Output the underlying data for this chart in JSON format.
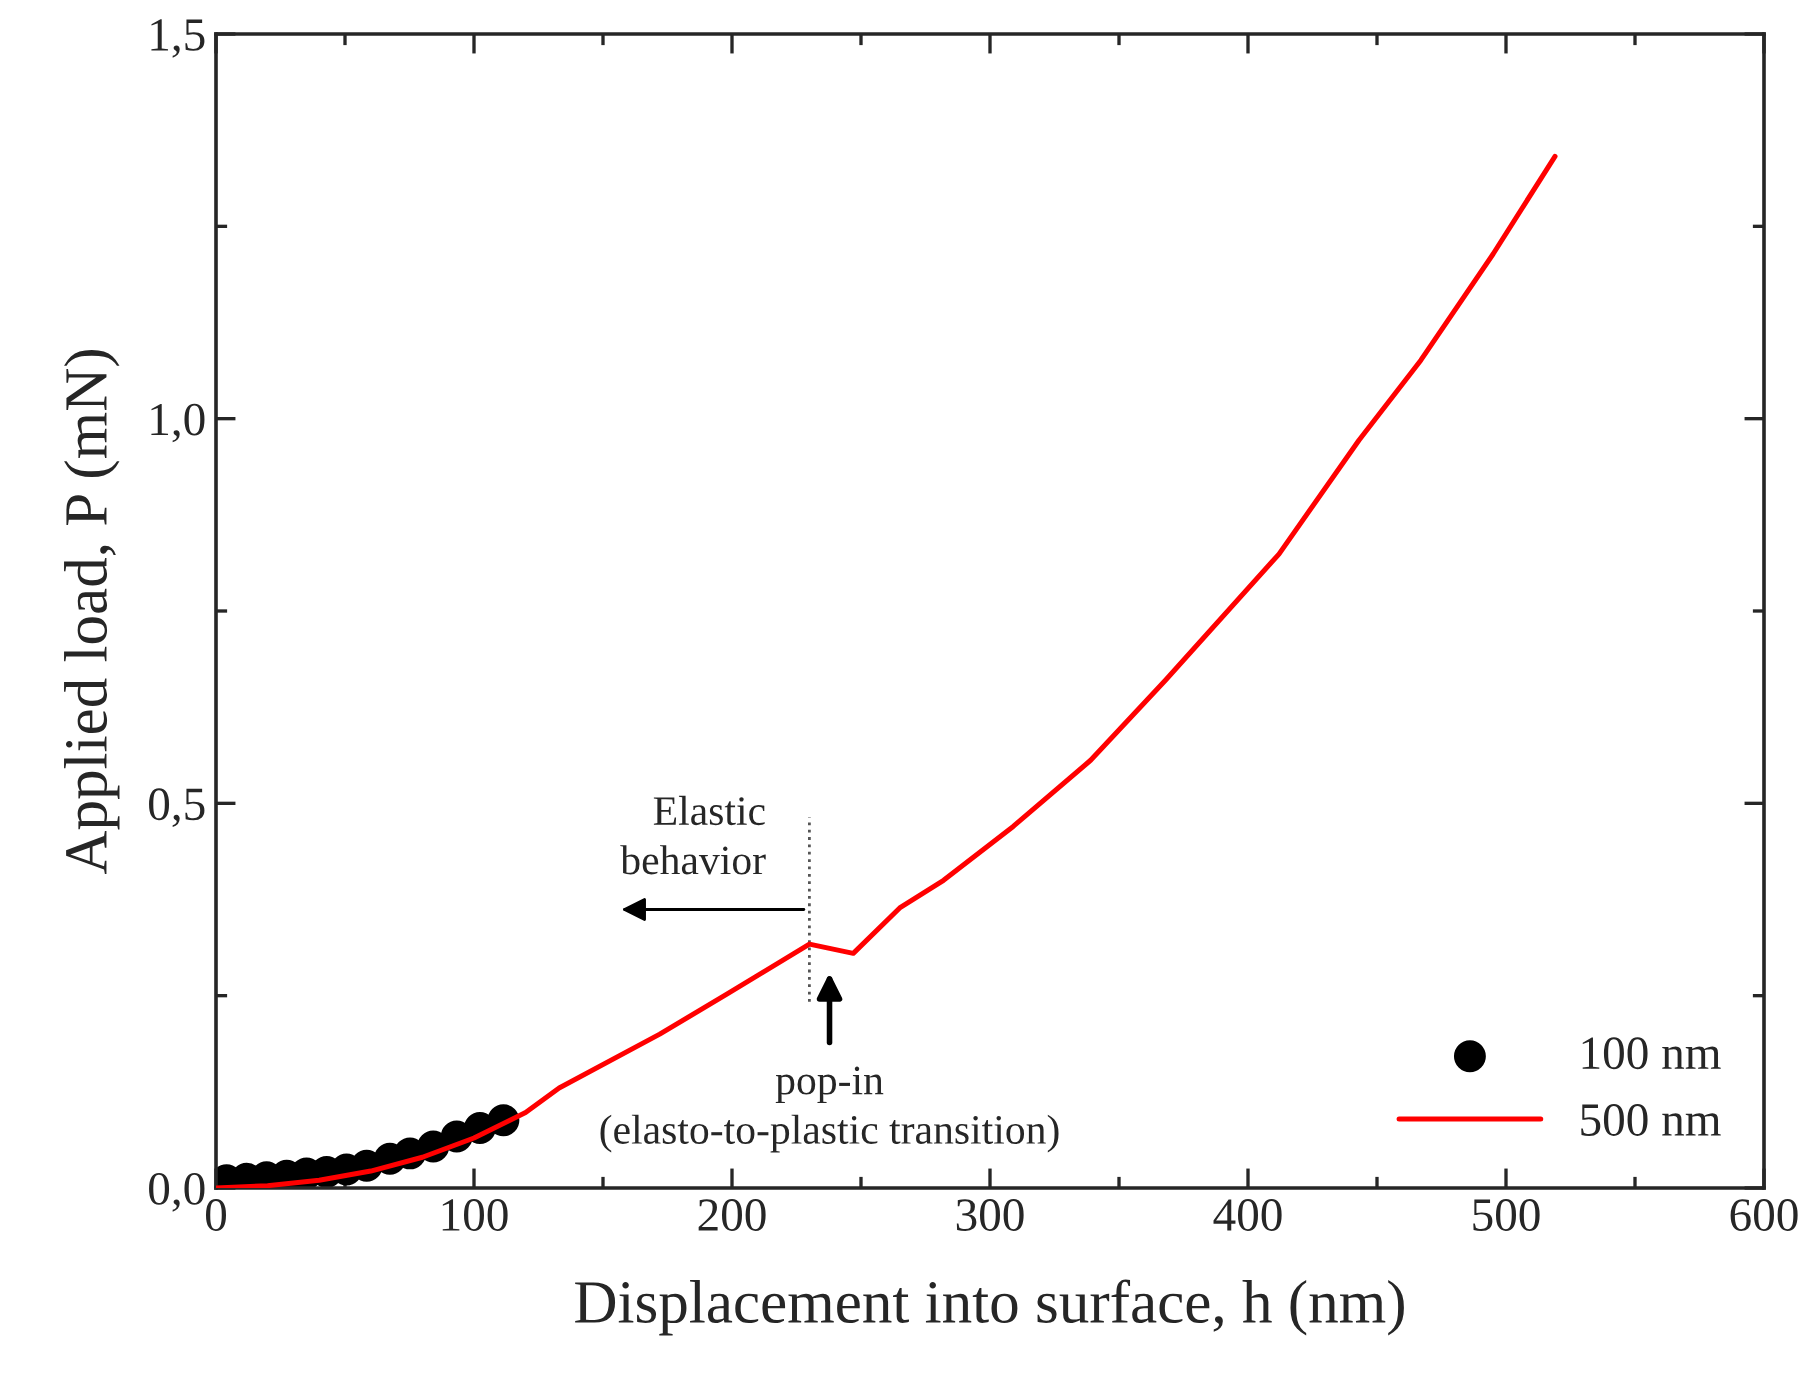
{
  "chart_data": {
    "type": "line",
    "xlabel": "Displacement into surface, h (nm)",
    "ylabel": "Applied load, P (mN)",
    "xlim": [
      0,
      600
    ],
    "xticks": [
      0,
      100,
      200,
      300,
      400,
      500,
      600
    ],
    "ylim": [
      0,
      1.5
    ],
    "yticks": [
      {
        "value": 0,
        "label": "0,0"
      },
      {
        "value": 0.5,
        "label": "0,5"
      },
      {
        "value": 1.0,
        "label": "1,0"
      },
      {
        "value": 1.5,
        "label": "1,5"
      }
    ],
    "grid": false,
    "legend": "bottom right",
    "series": [
      {
        "name": "100 nm",
        "type": "scatter",
        "marker": "circle",
        "color": "#000000",
        "x": [
          4.1,
          11.9,
          19.6,
          27.4,
          35.1,
          42.9,
          50.6,
          58.4,
          67.4,
          75.2,
          84.2,
          93.3,
          102.3,
          111.4
        ],
        "values": [
          0.01,
          0.012,
          0.014,
          0.016,
          0.019,
          0.021,
          0.024,
          0.029,
          0.038,
          0.045,
          0.054,
          0.067,
          0.078,
          0.088
        ]
      },
      {
        "name": "500 nm",
        "line_style": "solid",
        "color": "#ff0000",
        "x": [
          0,
          20,
          40,
          60,
          80,
          100,
          120,
          133,
          172,
          198,
          230,
          247,
          265,
          282,
          309,
          339,
          368,
          412,
          443,
          467,
          495,
          519
        ],
        "values": [
          0,
          0.003,
          0.01,
          0.022,
          0.04,
          0.065,
          0.098,
          0.13,
          0.2,
          0.252,
          0.317,
          0.305,
          0.364,
          0.4,
          0.47,
          0.556,
          0.66,
          0.824,
          0.972,
          1.076,
          1.214,
          1.341
        ]
      }
    ],
    "annotations": [
      "Elastic\nbehavior",
      "pop-in\n(elasto-to-plastic transition)"
    ]
  }
}
